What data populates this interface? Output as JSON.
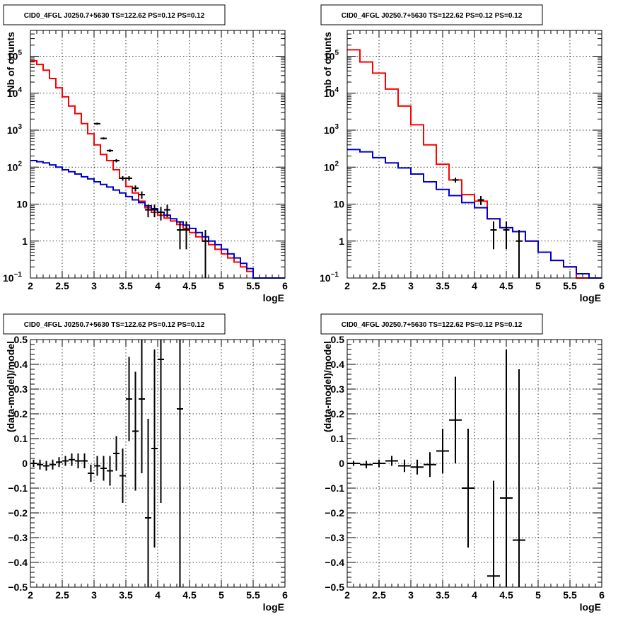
{
  "colors": {
    "total": "#ff0000",
    "background": "#0000cc",
    "data": "#000000"
  },
  "chart_data": [
    {
      "type": "line",
      "title": "CID0_4FGL J0250.7+5630 TS=122.62 PS=0.12 PS=0.12",
      "xlabel": "logE",
      "ylabel": "Nb of counts",
      "xlim": [
        2,
        6
      ],
      "ylim": [
        0.1,
        500000
      ],
      "yscale": "log",
      "grid": true,
      "xticks": [
        "2",
        "2.5",
        "3",
        "3.5",
        "4",
        "4.5",
        "5",
        "5.5",
        "6"
      ],
      "yticks": [
        {
          "value": 0.1,
          "base": "10",
          "exp": "−1"
        },
        {
          "value": 1,
          "base": "1",
          "exp": ""
        },
        {
          "value": 10,
          "base": "10",
          "exp": ""
        },
        {
          "value": 100,
          "base": "10",
          "exp": "2"
        },
        {
          "value": 1000,
          "base": "10",
          "exp": "3"
        },
        {
          "value": 10000,
          "base": "10",
          "exp": "4"
        },
        {
          "value": 100000,
          "base": "10",
          "exp": "5"
        }
      ],
      "bin_edges": [
        2.0,
        2.1,
        2.2,
        2.3,
        2.4,
        2.5,
        2.6,
        2.7,
        2.8,
        2.9,
        3.0,
        3.1,
        3.2,
        3.3,
        3.4,
        3.5,
        3.6,
        3.7,
        3.8,
        3.9,
        4.0,
        4.1,
        4.2,
        4.3,
        4.4,
        4.5,
        4.6,
        4.7,
        4.8,
        4.9,
        5.0,
        5.1,
        5.2,
        5.3,
        5.4,
        5.5,
        5.6,
        5.7,
        5.8,
        5.9,
        6.0
      ],
      "series": [
        {
          "role": "total",
          "values": [
            75000,
            60000,
            42000,
            25000,
            14000,
            8000,
            4500,
            2800,
            1500,
            800,
            400,
            220,
            150,
            85,
            50,
            30,
            20,
            12,
            8,
            6,
            5,
            4.2,
            3.5,
            2.8,
            2.2,
            1.7,
            1.3,
            1.0,
            0.8,
            0.6,
            0.45,
            0.35,
            0.27,
            0.2,
            0.15,
            0.1,
            0.1,
            0.1,
            0.1,
            0.1
          ]
        },
        {
          "role": "background",
          "values": [
            150,
            140,
            130,
            115,
            100,
            85,
            75,
            65,
            55,
            48,
            40,
            34,
            29,
            24,
            20,
            16,
            13,
            11,
            9,
            7.5,
            6,
            5,
            4,
            3.3,
            2.7,
            2.2,
            1.7,
            1.3,
            1.0,
            0.8,
            0.6,
            0.45,
            0.35,
            0.25,
            0.18,
            0.1,
            0.1,
            0.1,
            0.1,
            0.1
          ]
        }
      ],
      "points": [
        {
          "x": 3.05,
          "y": 1500,
          "err": 100
        },
        {
          "x": 3.15,
          "y": 600,
          "err": 40
        },
        {
          "x": 3.25,
          "y": 280,
          "err": 25
        },
        {
          "x": 3.35,
          "y": 150,
          "err": 15
        },
        {
          "x": 3.45,
          "y": 50,
          "err": 7
        },
        {
          "x": 3.55,
          "y": 50,
          "err": 7
        },
        {
          "x": 3.65,
          "y": 27,
          "err": 5
        },
        {
          "x": 3.75,
          "y": 18,
          "err": 4
        },
        {
          "x": 3.85,
          "y": 7,
          "err": 2.6
        },
        {
          "x": 3.95,
          "y": 7,
          "err": 2.6
        },
        {
          "x": 4.05,
          "y": 6,
          "err": 2.4
        },
        {
          "x": 4.15,
          "y": 7,
          "err": 2.6
        },
        {
          "x": 4.35,
          "y": 2,
          "err": 1.4
        },
        {
          "x": 4.45,
          "y": 2,
          "err": 1.4
        },
        {
          "x": 4.75,
          "y": 1,
          "err": 1
        }
      ]
    },
    {
      "type": "line",
      "title": "CID0_4FGL J0250.7+5630 TS=122.62 PS=0.12 PS=0.12",
      "xlabel": "logE",
      "ylabel": "nb of counts",
      "xlim": [
        2,
        6
      ],
      "ylim": [
        0.1,
        500000
      ],
      "yscale": "log",
      "grid": true,
      "xticks": [
        "2",
        "2.5",
        "3",
        "3.5",
        "4",
        "4.5",
        "5",
        "5.5",
        "6"
      ],
      "yticks": [
        {
          "value": 0.1,
          "base": "10",
          "exp": "−1"
        },
        {
          "value": 1,
          "base": "1",
          "exp": ""
        },
        {
          "value": 10,
          "base": "10",
          "exp": ""
        },
        {
          "value": 100,
          "base": "10",
          "exp": "2"
        },
        {
          "value": 1000,
          "base": "10",
          "exp": "3"
        },
        {
          "value": 10000,
          "base": "10",
          "exp": "4"
        },
        {
          "value": 100000,
          "base": "10",
          "exp": "5"
        }
      ],
      "bin_edges": [
        2.0,
        2.2,
        2.4,
        2.6,
        2.8,
        3.0,
        3.2,
        3.4,
        3.6,
        3.8,
        4.0,
        4.2,
        4.4,
        4.6,
        4.8,
        5.0,
        5.2,
        5.4,
        5.6,
        5.8,
        6.0
      ],
      "series": [
        {
          "role": "total",
          "values": [
            150000,
            70000,
            35000,
            13000,
            4500,
            1400,
            400,
            120,
            45,
            18,
            12,
            4,
            2.3,
            1.8,
            1.0,
            0.5,
            0.3,
            0.2,
            0.1,
            0.1
          ]
        },
        {
          "role": "background",
          "values": [
            300,
            260,
            180,
            130,
            95,
            65,
            40,
            25,
            17,
            11,
            8,
            4,
            2.3,
            1.8,
            1.0,
            0.5,
            0.3,
            0.2,
            0.13,
            0.1
          ]
        }
      ],
      "points": [
        {
          "x": 3.7,
          "y": 45,
          "err": 7
        },
        {
          "x": 4.1,
          "y": 13,
          "err": 3.6
        },
        {
          "x": 4.3,
          "y": 2,
          "err": 1.4
        },
        {
          "x": 4.5,
          "y": 2,
          "err": 1.4
        },
        {
          "x": 4.7,
          "y": 1,
          "err": 1
        }
      ]
    },
    {
      "type": "scatter",
      "title": "CID0_4FGL J0250.7+5630 TS=122.62 PS=0.12 PS=0.12",
      "xlabel": "logE",
      "ylabel": "(data-model)/model",
      "xlim": [
        2,
        6
      ],
      "ylim": [
        -0.5,
        0.5
      ],
      "grid": true,
      "xticks": [
        "2",
        "2.5",
        "3",
        "3.5",
        "4",
        "4.5",
        "5",
        "5.5",
        "6"
      ],
      "yticks": [
        "−0.5",
        "−0.4",
        "−0.3",
        "−0.2",
        "−0.1",
        "0",
        "0.1",
        "0.2",
        "0.3",
        "0.4",
        "0.5"
      ],
      "xerr": 0.05,
      "points": [
        {
          "x": 2.05,
          "y": 0.0,
          "err": 0.015
        },
        {
          "x": 2.15,
          "y": -0.005,
          "err": 0.02
        },
        {
          "x": 2.25,
          "y": -0.01,
          "err": 0.02
        },
        {
          "x": 2.35,
          "y": -0.005,
          "err": 0.02
        },
        {
          "x": 2.45,
          "y": 0.005,
          "err": 0.02
        },
        {
          "x": 2.55,
          "y": 0.01,
          "err": 0.02
        },
        {
          "x": 2.65,
          "y": 0.015,
          "err": 0.025
        },
        {
          "x": 2.75,
          "y": 0.01,
          "err": 0.03
        },
        {
          "x": 2.85,
          "y": 0.01,
          "err": 0.03
        },
        {
          "x": 2.95,
          "y": -0.04,
          "err": 0.035
        },
        {
          "x": 3.05,
          "y": -0.01,
          "err": 0.04
        },
        {
          "x": 3.15,
          "y": -0.02,
          "err": 0.05
        },
        {
          "x": 3.25,
          "y": -0.03,
          "err": 0.06
        },
        {
          "x": 3.35,
          "y": 0.04,
          "err": 0.07
        },
        {
          "x": 3.45,
          "y": -0.05,
          "err": 0.11
        },
        {
          "x": 3.55,
          "y": 0.26,
          "err": 0.17
        },
        {
          "x": 3.65,
          "y": 0.13,
          "err": 0.24
        },
        {
          "x": 3.75,
          "y": 0.26,
          "err": 0.3
        },
        {
          "x": 3.85,
          "y": -0.22,
          "err": 0.4
        },
        {
          "x": 3.95,
          "y": 0.06,
          "err": 0.4
        },
        {
          "x": 4.05,
          "y": 0.42,
          "err": 0.58
        },
        {
          "x": 4.35,
          "y": 0.22,
          "err": 0.8
        }
      ]
    },
    {
      "type": "scatter",
      "title": "CID0_4FGL J0250.7+5630 TS=122.62 PS=0.12 PS=0.12",
      "xlabel": "logE",
      "ylabel": "(data-model)/model",
      "xlim": [
        2,
        6
      ],
      "ylim": [
        -0.5,
        0.5
      ],
      "grid": true,
      "xticks": [
        "2",
        "2.5",
        "3",
        "3.5",
        "4",
        "4.5",
        "5",
        "5.5",
        "6"
      ],
      "yticks": [
        "−0.5",
        "−0.4",
        "−0.3",
        "−0.2",
        "−0.1",
        "0",
        "0.1",
        "0.2",
        "0.3",
        "0.4",
        "0.5"
      ],
      "xerr": 0.1,
      "points": [
        {
          "x": 2.1,
          "y": 0.0,
          "err": 0.01
        },
        {
          "x": 2.3,
          "y": -0.005,
          "err": 0.015
        },
        {
          "x": 2.5,
          "y": 0.0,
          "err": 0.015
        },
        {
          "x": 2.7,
          "y": 0.01,
          "err": 0.02
        },
        {
          "x": 2.9,
          "y": -0.01,
          "err": 0.025
        },
        {
          "x": 3.1,
          "y": -0.015,
          "err": 0.03
        },
        {
          "x": 3.3,
          "y": -0.005,
          "err": 0.05
        },
        {
          "x": 3.5,
          "y": 0.05,
          "err": 0.09
        },
        {
          "x": 3.7,
          "y": 0.175,
          "err": 0.175
        },
        {
          "x": 3.9,
          "y": -0.1,
          "err": 0.24
        },
        {
          "x": 4.3,
          "y": -0.455,
          "err": 0.385
        },
        {
          "x": 4.5,
          "y": -0.14,
          "err": 0.6
        },
        {
          "x": 4.7,
          "y": -0.31,
          "err": 0.69
        }
      ]
    }
  ]
}
